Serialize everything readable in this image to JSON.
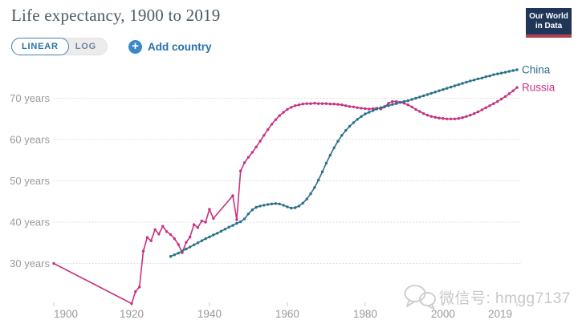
{
  "header": {
    "title": "Life expectancy, 1900 to 2019"
  },
  "controls": {
    "linear_label": "LINEAR",
    "log_label": "LOG",
    "plus_glyph": "+",
    "add_country_label": "Add country",
    "accent_blue": "#2672ae"
  },
  "logo": {
    "line1": "Our World",
    "line2": "in Data",
    "bg": "#1f3659",
    "bar_color": "#b2414f"
  },
  "watermark": {
    "text": "微信号: hmgg7137"
  },
  "chart_data": {
    "type": "line",
    "title": "Life expectancy, 1900 to 2019",
    "xlabel": "",
    "ylabel": "",
    "xlim": [
      1900,
      2019
    ],
    "ylim": [
      20,
      78
    ],
    "grid": "horizontal dotted",
    "legend": "end-of-line labels",
    "x_ticks": [
      {
        "label": "1900",
        "year": 1900
      },
      {
        "label": "1920",
        "year": 1920
      },
      {
        "label": "1940",
        "year": 1940
      },
      {
        "label": "1960",
        "year": 1960
      },
      {
        "label": "1980",
        "year": 1980
      },
      {
        "label": "2000",
        "year": 2000
      },
      {
        "label": "2019",
        "year": 2019
      }
    ],
    "y_ticks": [
      {
        "label": "30 years",
        "value": 30
      },
      {
        "label": "40 years",
        "value": 40
      },
      {
        "label": "50 years",
        "value": 50
      },
      {
        "label": "60 years",
        "value": 60
      },
      {
        "label": "70 years",
        "value": 70
      }
    ],
    "series": [
      {
        "name": "Russia",
        "color": "#c63383",
        "points": [
          [
            1900,
            30.0
          ],
          [
            1920,
            20.3
          ],
          [
            1921,
            23.2
          ],
          [
            1922,
            24.3
          ],
          [
            1923,
            33.0
          ],
          [
            1924,
            36.3
          ],
          [
            1925,
            35.5
          ],
          [
            1926,
            38.2
          ],
          [
            1927,
            37.1
          ],
          [
            1928,
            39.0
          ],
          [
            1929,
            37.7
          ],
          [
            1930,
            37.0
          ],
          [
            1931,
            36.0
          ],
          [
            1932,
            34.6
          ],
          [
            1933,
            32.6
          ],
          [
            1934,
            35.1
          ],
          [
            1935,
            36.4
          ],
          [
            1936,
            39.4
          ],
          [
            1937,
            38.7
          ],
          [
            1938,
            40.3
          ],
          [
            1939,
            40.0
          ],
          [
            1940,
            43.1
          ],
          [
            1941,
            40.9
          ],
          [
            1946,
            46.4
          ],
          [
            1947,
            40.6
          ],
          [
            1948,
            52.4
          ],
          [
            1949,
            54.4
          ],
          [
            1950,
            55.7
          ],
          [
            1951,
            56.9
          ],
          [
            1952,
            58.2
          ],
          [
            1953,
            59.6
          ],
          [
            1954,
            61.0
          ],
          [
            1955,
            62.4
          ],
          [
            1956,
            63.7
          ],
          [
            1957,
            64.8
          ],
          [
            1958,
            65.8
          ],
          [
            1959,
            66.6
          ],
          [
            1960,
            67.3
          ],
          [
            1961,
            67.8
          ],
          [
            1962,
            68.2
          ],
          [
            1963,
            68.4
          ],
          [
            1964,
            68.6
          ],
          [
            1965,
            68.7
          ],
          [
            1966,
            68.7
          ],
          [
            1967,
            68.8
          ],
          [
            1968,
            68.7
          ],
          [
            1969,
            68.7
          ],
          [
            1970,
            68.7
          ],
          [
            1971,
            68.6
          ],
          [
            1972,
            68.6
          ],
          [
            1973,
            68.5
          ],
          [
            1974,
            68.4
          ],
          [
            1975,
            68.2
          ],
          [
            1976,
            68.0
          ],
          [
            1977,
            67.9
          ],
          [
            1978,
            67.7
          ],
          [
            1979,
            67.6
          ],
          [
            1980,
            67.5
          ],
          [
            1981,
            67.4
          ],
          [
            1982,
            67.5
          ],
          [
            1983,
            67.6
          ],
          [
            1984,
            67.4
          ],
          [
            1985,
            67.9
          ],
          [
            1986,
            68.8
          ],
          [
            1987,
            69.2
          ],
          [
            1988,
            69.2
          ],
          [
            1989,
            69.0
          ],
          [
            1990,
            68.8
          ],
          [
            1991,
            68.4
          ],
          [
            1992,
            67.9
          ],
          [
            1993,
            67.3
          ],
          [
            1994,
            66.8
          ],
          [
            1995,
            66.3
          ],
          [
            1996,
            65.9
          ],
          [
            1997,
            65.6
          ],
          [
            1998,
            65.4
          ],
          [
            1999,
            65.2
          ],
          [
            2000,
            65.1
          ],
          [
            2001,
            65.0
          ],
          [
            2002,
            65.0
          ],
          [
            2003,
            65.0
          ],
          [
            2004,
            65.1
          ],
          [
            2005,
            65.3
          ],
          [
            2006,
            65.6
          ],
          [
            2007,
            65.9
          ],
          [
            2008,
            66.3
          ],
          [
            2009,
            66.7
          ],
          [
            2010,
            67.2
          ],
          [
            2011,
            67.7
          ],
          [
            2012,
            68.2
          ],
          [
            2013,
            68.7
          ],
          [
            2014,
            69.2
          ],
          [
            2015,
            69.8
          ],
          [
            2016,
            70.4
          ],
          [
            2017,
            71.1
          ],
          [
            2018,
            71.8
          ],
          [
            2019,
            72.6
          ]
        ]
      },
      {
        "name": "China",
        "color": "#2b6f8b",
        "points": [
          [
            1930,
            31.7
          ],
          [
            1931,
            32.1
          ],
          [
            1932,
            32.5
          ],
          [
            1933,
            33.0
          ],
          [
            1934,
            33.5
          ],
          [
            1935,
            34.0
          ],
          [
            1936,
            34.5
          ],
          [
            1937,
            35.0
          ],
          [
            1938,
            35.5
          ],
          [
            1939,
            36.0
          ],
          [
            1940,
            36.4
          ],
          [
            1941,
            36.9
          ],
          [
            1942,
            37.3
          ],
          [
            1943,
            37.8
          ],
          [
            1944,
            38.3
          ],
          [
            1945,
            38.8
          ],
          [
            1946,
            39.2
          ],
          [
            1947,
            39.7
          ],
          [
            1948,
            40.1
          ],
          [
            1949,
            40.8
          ],
          [
            1950,
            42.0
          ],
          [
            1951,
            43.0
          ],
          [
            1952,
            43.6
          ],
          [
            1953,
            43.9
          ],
          [
            1954,
            44.1
          ],
          [
            1955,
            44.3
          ],
          [
            1956,
            44.4
          ],
          [
            1957,
            44.5
          ],
          [
            1958,
            44.4
          ],
          [
            1959,
            44.1
          ],
          [
            1960,
            43.7
          ],
          [
            1961,
            43.4
          ],
          [
            1962,
            43.5
          ],
          [
            1963,
            43.9
          ],
          [
            1964,
            44.6
          ],
          [
            1965,
            45.6
          ],
          [
            1966,
            46.9
          ],
          [
            1967,
            48.4
          ],
          [
            1968,
            50.2
          ],
          [
            1969,
            52.2
          ],
          [
            1970,
            54.3
          ],
          [
            1971,
            56.2
          ],
          [
            1972,
            58.0
          ],
          [
            1973,
            59.6
          ],
          [
            1974,
            61.0
          ],
          [
            1975,
            62.2
          ],
          [
            1976,
            63.2
          ],
          [
            1977,
            64.1
          ],
          [
            1978,
            64.9
          ],
          [
            1979,
            65.6
          ],
          [
            1980,
            66.2
          ],
          [
            1981,
            66.6
          ],
          [
            1982,
            67.0
          ],
          [
            1983,
            67.4
          ],
          [
            1984,
            67.7
          ],
          [
            1985,
            68.0
          ],
          [
            1986,
            68.2
          ],
          [
            1987,
            68.5
          ],
          [
            1988,
            68.7
          ],
          [
            1989,
            69.0
          ],
          [
            1990,
            69.2
          ],
          [
            1991,
            69.4
          ],
          [
            1992,
            69.7
          ],
          [
            1993,
            70.0
          ],
          [
            1994,
            70.3
          ],
          [
            1995,
            70.6
          ],
          [
            1996,
            70.9
          ],
          [
            1997,
            71.2
          ],
          [
            1998,
            71.5
          ],
          [
            1999,
            71.8
          ],
          [
            2000,
            72.1
          ],
          [
            2001,
            72.4
          ],
          [
            2002,
            72.7
          ],
          [
            2003,
            73.0
          ],
          [
            2004,
            73.3
          ],
          [
            2005,
            73.6
          ],
          [
            2006,
            73.9
          ],
          [
            2007,
            74.2
          ],
          [
            2008,
            74.4
          ],
          [
            2009,
            74.7
          ],
          [
            2010,
            74.9
          ],
          [
            2011,
            75.2
          ],
          [
            2012,
            75.4
          ],
          [
            2013,
            75.7
          ],
          [
            2014,
            75.9
          ],
          [
            2015,
            76.1
          ],
          [
            2016,
            76.3
          ],
          [
            2017,
            76.5
          ],
          [
            2018,
            76.7
          ],
          [
            2019,
            76.9
          ]
        ]
      }
    ]
  }
}
